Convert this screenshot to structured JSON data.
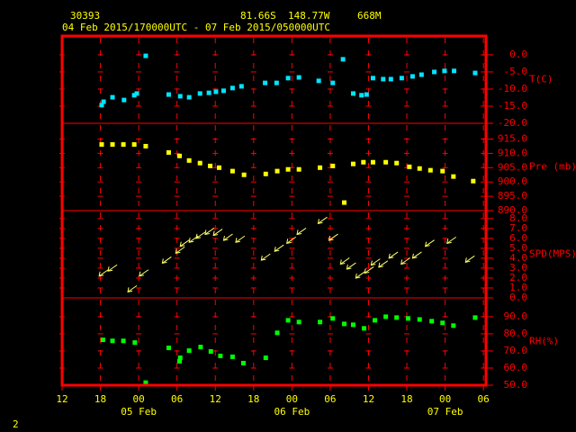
{
  "header": {
    "station": "30393",
    "lat": "81.66S",
    "lon": "148.77W",
    "elev": "668M",
    "period": "04 Feb 2015/170000UTC - 07 Feb 2015/050000UTC",
    "page": "2"
  },
  "chart_data": [
    {
      "type": "scatter",
      "ylabel": "T(C)",
      "color": "#00e5ff",
      "x": [
        6.2,
        6.5,
        7.9,
        9.7,
        11.3,
        11.7,
        13.1,
        16.7,
        18.5,
        19.9,
        21.6,
        23.0,
        24.1,
        25.3,
        26.7,
        28.1,
        31.8,
        33.6,
        35.4,
        37.1,
        40.2,
        42.4,
        44.0,
        45.6,
        46.9,
        47.7,
        48.7,
        50.3,
        51.5,
        53.2,
        54.9,
        56.3,
        58.3,
        59.9,
        61.4,
        64.7
      ],
      "values": [
        -14.7,
        -13.7,
        -12.4,
        -13.2,
        -11.8,
        -11.3,
        -0.3,
        -11.6,
        -12.1,
        -12.4,
        -11.3,
        -11.1,
        -10.8,
        -10.5,
        -9.7,
        -9.2,
        -8.2,
        -8.2,
        -6.8,
        -6.6,
        -7.6,
        -8.2,
        -1.3,
        -11.3,
        -11.8,
        -11.6,
        -6.8,
        -7.1,
        -7.1,
        -6.8,
        -6.3,
        -5.8,
        -5.0,
        -4.7,
        -4.7,
        -5.3
      ],
      "ylim": [
        -20,
        5.5
      ],
      "yticks": [
        {
          "value": 0,
          "label": "0.0"
        },
        {
          "value": -5,
          "label": "-5.0"
        },
        {
          "value": -10,
          "label": "-10.0"
        },
        {
          "value": -15,
          "label": "-15.0"
        },
        {
          "value": -20,
          "label": "-20.0"
        }
      ]
    },
    {
      "type": "scatter",
      "ylabel": "Pre (mb)",
      "color": "#ffff00",
      "x": [
        6.2,
        7.9,
        9.6,
        11.3,
        13.1,
        16.7,
        18.4,
        19.9,
        21.6,
        23.2,
        24.6,
        26.7,
        28.5,
        31.9,
        33.7,
        35.4,
        37.1,
        40.4,
        42.4,
        44.2,
        45.6,
        47.2,
        48.7,
        50.7,
        52.4,
        54.4,
        56.0,
        57.7,
        59.6,
        61.3,
        64.4
      ],
      "values": [
        913.1,
        913.1,
        913.1,
        913.1,
        912.5,
        910.3,
        909.1,
        907.5,
        906.6,
        905.6,
        905.0,
        903.8,
        902.5,
        902.8,
        903.8,
        904.4,
        904.4,
        905.0,
        905.6,
        892.8,
        906.3,
        906.9,
        906.9,
        906.9,
        906.6,
        905.3,
        904.7,
        904.1,
        903.8,
        901.9,
        900.3
      ],
      "ylim": [
        890,
        920.5
      ],
      "yticks": [
        {
          "value": 915,
          "label": "915.0"
        },
        {
          "value": 910,
          "label": "910.0"
        },
        {
          "value": 905,
          "label": "905.0"
        },
        {
          "value": 900,
          "label": "900.0"
        },
        {
          "value": 895,
          "label": "895.0"
        },
        {
          "value": 890,
          "label": "890.0"
        }
      ]
    },
    {
      "type": "wind",
      "ylabel": "SPD(MPS)",
      "color": "#ffff66",
      "x": [
        5.8,
        7.2,
        10.3,
        12.1,
        15.7,
        17.8,
        18.5,
        19.9,
        21.0,
        22.4,
        23.7,
        25.3,
        27.2,
        31.2,
        33.3,
        35.2,
        36.8,
        40.1,
        41.8,
        43.6,
        44.6,
        46.0,
        47.4,
        48.4,
        49.6,
        51.2,
        53.1,
        54.9,
        56.9,
        60.3,
        63.2
      ],
      "values": [
        2.2,
        2.7,
        0.6,
        2.2,
        3.5,
        4.5,
        5.2,
        5.6,
        6.0,
        6.4,
        6.3,
        5.8,
        5.6,
        3.8,
        4.7,
        5.5,
        6.4,
        7.5,
        5.8,
        3.4,
        2.9,
        2.0,
        2.5,
        3.3,
        3.1,
        4.0,
        3.4,
        4.0,
        5.2,
        5.5,
        3.6
      ],
      "ylim": [
        0,
        8.8
      ],
      "yticks": [
        {
          "value": 8,
          "label": "8.0"
        },
        {
          "value": 7,
          "label": "7.0"
        },
        {
          "value": 6,
          "label": "6.0"
        },
        {
          "value": 5,
          "label": "5.0"
        },
        {
          "value": 4,
          "label": "4.0"
        },
        {
          "value": 3,
          "label": "3.0"
        },
        {
          "value": 2,
          "label": "2.0"
        },
        {
          "value": 1,
          "label": "1.0"
        },
        {
          "value": 0,
          "label": "0.0"
        }
      ]
    },
    {
      "type": "scatter",
      "ylabel": "RH(%)",
      "color": "#00ff00",
      "x": [
        6.4,
        7.9,
        9.6,
        11.4,
        13.1,
        16.7,
        18.4,
        18.5,
        19.9,
        21.7,
        23.3,
        24.8,
        26.7,
        28.4,
        31.9,
        33.7,
        35.4,
        37.1,
        40.4,
        42.4,
        44.2,
        45.6,
        47.3,
        49.0,
        50.7,
        52.4,
        54.2,
        56.0,
        57.9,
        59.6,
        61.3,
        64.7
      ],
      "values": [
        76.5,
        75.9,
        75.9,
        74.9,
        51.5,
        71.8,
        64.0,
        66.0,
        70.2,
        72.3,
        69.7,
        67.1,
        66.6,
        62.9,
        66.0,
        80.6,
        87.9,
        86.9,
        86.9,
        89.0,
        85.8,
        85.3,
        83.2,
        87.9,
        90.0,
        89.5,
        89.0,
        88.4,
        87.4,
        86.4,
        84.8,
        89.5
      ],
      "ylim": [
        50,
        101
      ],
      "yticks": [
        {
          "value": 90,
          "label": "90.0"
        },
        {
          "value": 80,
          "label": "80.0"
        },
        {
          "value": 70,
          "label": "70.0"
        },
        {
          "value": 60,
          "label": "60.0"
        },
        {
          "value": 50,
          "label": "50.0"
        }
      ],
      "xlim": [
        0,
        66.4
      ],
      "xticks": [
        {
          "value": 0,
          "label": "12"
        },
        {
          "value": 6,
          "label": "18"
        },
        {
          "value": 12,
          "label": "00"
        },
        {
          "value": 18,
          "label": "06"
        },
        {
          "value": 24,
          "label": "12"
        },
        {
          "value": 30,
          "label": "18"
        },
        {
          "value": 36,
          "label": "00"
        },
        {
          "value": 42,
          "label": "06"
        },
        {
          "value": 48,
          "label": "12"
        },
        {
          "value": 54,
          "label": "18"
        },
        {
          "value": 60,
          "label": "00"
        },
        {
          "value": 66,
          "label": "06"
        }
      ],
      "date_labels": [
        {
          "value": 12,
          "label": "05 Feb"
        },
        {
          "value": 36,
          "label": "06 Feb"
        },
        {
          "value": 60,
          "label": "07 Feb"
        }
      ]
    }
  ]
}
